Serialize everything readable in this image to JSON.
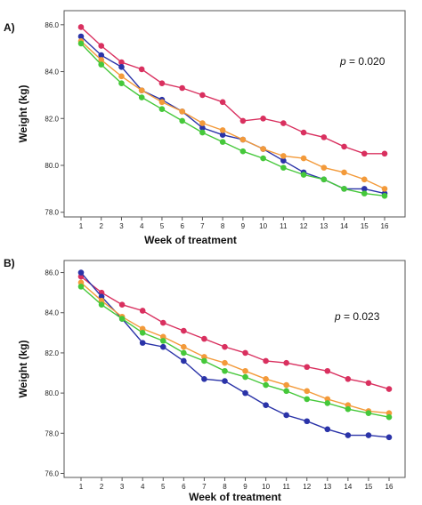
{
  "chart_data": [
    {
      "type": "line",
      "panel_label": "A)",
      "xlabel": "Week of treatment",
      "ylabel": "Weight (kg)",
      "annotation": {
        "p_symbol": "p",
        "p_text": " = 0.020"
      },
      "x": [
        1,
        2,
        3,
        4,
        5,
        6,
        7,
        8,
        9,
        10,
        11,
        12,
        13,
        14,
        15,
        16
      ],
      "x_tick_labels": [
        "1",
        "2",
        "3",
        "4",
        "5",
        "6",
        "7",
        "8",
        "9",
        "10",
        "11",
        "12",
        "13",
        "14",
        "15",
        "16"
      ],
      "ylim": [
        77.8,
        86.6
      ],
      "y_ticks": [
        78,
        80,
        82,
        84,
        86
      ],
      "y_tick_labels": [
        "78.0",
        "80.0",
        "82.0",
        "84.0",
        "86.0"
      ],
      "grid": false,
      "legend": "none",
      "series": [
        {
          "color": "#d9305f",
          "values": [
            85.9,
            85.1,
            84.4,
            84.1,
            83.5,
            83.3,
            83.0,
            82.7,
            81.9,
            82.0,
            81.8,
            81.4,
            81.2,
            80.8,
            80.5,
            80.5
          ]
        },
        {
          "color": "#2a33a8",
          "values": [
            85.5,
            84.7,
            84.2,
            83.2,
            82.8,
            82.3,
            81.6,
            81.3,
            81.1,
            80.7,
            80.2,
            79.7,
            79.4,
            79.0,
            79.0,
            78.8
          ]
        },
        {
          "color": "#f39a3a",
          "values": [
            85.3,
            84.5,
            83.8,
            83.2,
            82.7,
            82.3,
            81.8,
            81.5,
            81.1,
            80.7,
            80.4,
            80.3,
            79.9,
            79.7,
            79.4,
            79.0
          ]
        },
        {
          "color": "#45c83a",
          "values": [
            85.2,
            84.3,
            83.5,
            82.9,
            82.4,
            81.9,
            81.4,
            81.0,
            80.6,
            80.3,
            79.9,
            79.6,
            79.4,
            79.0,
            78.8,
            78.7
          ]
        }
      ]
    },
    {
      "type": "line",
      "panel_label": "B)",
      "xlabel": "Week of treatment",
      "ylabel": "Weight (kg)",
      "annotation": {
        "p_symbol": "p",
        "p_text": " = 0.023"
      },
      "x": [
        1,
        2,
        3,
        4,
        5,
        6,
        7,
        8,
        9,
        10,
        11,
        12,
        13,
        14,
        15,
        16
      ],
      "x_tick_labels": [
        "1",
        "2",
        "3",
        "4",
        "5",
        "6",
        "7",
        "8",
        "9",
        "10",
        "11",
        "12",
        "13",
        "14",
        "15",
        "16"
      ],
      "ylim": [
        75.8,
        86.6
      ],
      "y_ticks": [
        76,
        78,
        80,
        82,
        84,
        86
      ],
      "y_tick_labels": [
        "76.0",
        "78.0",
        "80.0",
        "82.0",
        "84.0",
        "86.0"
      ],
      "grid": false,
      "legend": "none",
      "series": [
        {
          "color": "#d9305f",
          "values": [
            85.8,
            85.0,
            84.4,
            84.1,
            83.5,
            83.1,
            82.7,
            82.3,
            82.0,
            81.6,
            81.5,
            81.3,
            81.1,
            80.7,
            80.5,
            80.2
          ]
        },
        {
          "color": "#2a33a8",
          "values": [
            86.0,
            84.8,
            83.7,
            82.5,
            82.3,
            81.6,
            80.7,
            80.6,
            80.0,
            79.4,
            78.9,
            78.6,
            78.2,
            77.9,
            77.9,
            77.8
          ]
        },
        {
          "color": "#f39a3a",
          "values": [
            85.5,
            84.6,
            83.8,
            83.2,
            82.8,
            82.3,
            81.8,
            81.5,
            81.1,
            80.7,
            80.4,
            80.1,
            79.7,
            79.4,
            79.1,
            79.0
          ]
        },
        {
          "color": "#45c83a",
          "values": [
            85.3,
            84.4,
            83.7,
            83.0,
            82.6,
            82.0,
            81.6,
            81.1,
            80.8,
            80.4,
            80.1,
            79.7,
            79.5,
            79.2,
            79.0,
            78.8
          ]
        }
      ]
    }
  ]
}
